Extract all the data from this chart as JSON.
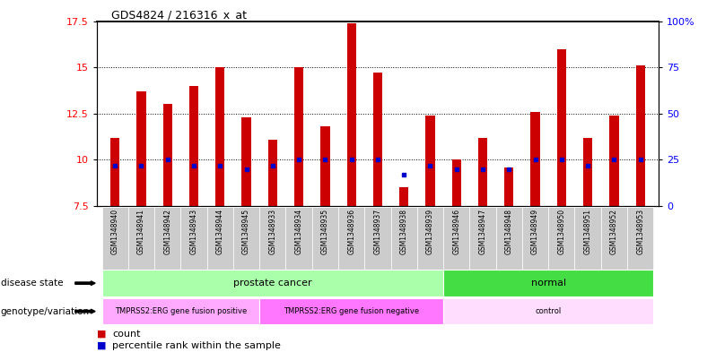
{
  "title": "GDS4824 / 216316_x_at",
  "samples": [
    "GSM1348940",
    "GSM1348941",
    "GSM1348942",
    "GSM1348943",
    "GSM1348944",
    "GSM1348945",
    "GSM1348933",
    "GSM1348934",
    "GSM1348935",
    "GSM1348936",
    "GSM1348937",
    "GSM1348938",
    "GSM1348939",
    "GSM1348946",
    "GSM1348947",
    "GSM1348948",
    "GSM1348949",
    "GSM1348950",
    "GSM1348951",
    "GSM1348952",
    "GSM1348953"
  ],
  "counts": [
    11.2,
    13.7,
    13.0,
    14.0,
    15.0,
    12.3,
    11.1,
    15.0,
    11.8,
    17.4,
    14.7,
    8.5,
    12.4,
    10.0,
    11.2,
    9.6,
    12.6,
    16.0,
    11.2,
    12.4,
    15.1
  ],
  "percentiles": [
    22,
    22,
    25,
    22,
    22,
    20,
    22,
    25,
    25,
    25,
    25,
    17,
    22,
    20,
    20,
    20,
    25,
    25,
    22,
    25,
    25
  ],
  "ymin": 7.5,
  "ymax": 17.5,
  "y_left_ticks": [
    7.5,
    10.0,
    12.5,
    15.0,
    17.5
  ],
  "y_left_labels": [
    "7.5",
    "10",
    "12.5",
    "15",
    "17.5"
  ],
  "y_right_ticks": [
    0,
    25,
    50,
    75,
    100
  ],
  "y_right_labels": [
    "0",
    "25",
    "50",
    "75",
    "100%"
  ],
  "bar_color": "#cc0000",
  "dot_color": "#0000cc",
  "disease_state_groups": [
    {
      "label": "prostate cancer",
      "start": 0,
      "end": 12,
      "color": "#aaffaa"
    },
    {
      "label": "normal",
      "start": 13,
      "end": 20,
      "color": "#44dd44"
    }
  ],
  "genotype_groups": [
    {
      "label": "TMPRSS2:ERG gene fusion positive",
      "start": 0,
      "end": 5,
      "color": "#ffaaff"
    },
    {
      "label": "TMPRSS2:ERG gene fusion negative",
      "start": 6,
      "end": 12,
      "color": "#ff77ff"
    },
    {
      "label": "control",
      "start": 13,
      "end": 20,
      "color": "#ffddff"
    }
  ],
  "tick_bg_color": "#cccccc"
}
